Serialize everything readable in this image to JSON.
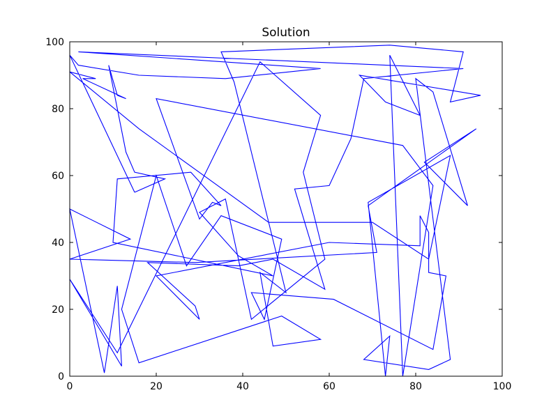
{
  "chart_data": {
    "type": "line",
    "title": "Solution",
    "xlabel": "",
    "ylabel": "",
    "xlim": [
      0,
      100
    ],
    "ylim": [
      0,
      100
    ],
    "xticks": [
      0,
      20,
      40,
      60,
      80,
      100
    ],
    "yticks": [
      0,
      20,
      40,
      60,
      80,
      100
    ],
    "xtick_labels": [
      "0",
      "20",
      "40",
      "60",
      "80",
      "100"
    ],
    "ytick_labels": [
      "0",
      "20",
      "40",
      "60",
      "80",
      "100"
    ],
    "grid": false,
    "legend": "none",
    "series": [
      {
        "color": "#0000ff",
        "points": [
          [
            15,
            55
          ],
          [
            22,
            59
          ],
          [
            15,
            61
          ],
          [
            13,
            67
          ],
          [
            9,
            93
          ],
          [
            11,
            84
          ],
          [
            13,
            83
          ],
          [
            3,
            89
          ],
          [
            6,
            89
          ],
          [
            0,
            91
          ],
          [
            16,
            74
          ],
          [
            46,
            46
          ],
          [
            70,
            46
          ],
          [
            83,
            35
          ],
          [
            88,
            66
          ],
          [
            69,
            52
          ],
          [
            73,
            0
          ],
          [
            74,
            12
          ],
          [
            68,
            5
          ],
          [
            83,
            2
          ],
          [
            88,
            5
          ],
          [
            80,
            89
          ],
          [
            84,
            85
          ],
          [
            92,
            51
          ],
          [
            82,
            64
          ],
          [
            94,
            74
          ],
          [
            69,
            51
          ],
          [
            71,
            37
          ],
          [
            29,
            34
          ],
          [
            0,
            35
          ],
          [
            14,
            41
          ],
          [
            0,
            50
          ],
          [
            8,
            1
          ],
          [
            11,
            27
          ],
          [
            12,
            3
          ],
          [
            0,
            29
          ],
          [
            11,
            7
          ],
          [
            44,
            94
          ],
          [
            58,
            78
          ],
          [
            54,
            61
          ],
          [
            59,
            35
          ],
          [
            42,
            17
          ],
          [
            36,
            53
          ],
          [
            30,
            49
          ],
          [
            39,
            36
          ],
          [
            47,
            30
          ],
          [
            10,
            40
          ],
          [
            11,
            59
          ],
          [
            28,
            61
          ],
          [
            35,
            51
          ],
          [
            33,
            52
          ],
          [
            30,
            47
          ],
          [
            20,
            83
          ],
          [
            77,
            69
          ],
          [
            84,
            57
          ],
          [
            77,
            0
          ],
          [
            74,
            96
          ],
          [
            81,
            78
          ],
          [
            73,
            82
          ],
          [
            67,
            90
          ],
          [
            95,
            84
          ],
          [
            88,
            82
          ],
          [
            91,
            97
          ],
          [
            74,
            99
          ],
          [
            35,
            97
          ],
          [
            38,
            88
          ],
          [
            50,
            25
          ],
          [
            44,
            31
          ],
          [
            47,
            9
          ],
          [
            58,
            11
          ],
          [
            49,
            18
          ],
          [
            16,
            4
          ],
          [
            12,
            20
          ],
          [
            20,
            60
          ],
          [
            27,
            33
          ],
          [
            35,
            48
          ],
          [
            49,
            41
          ],
          [
            45,
            17
          ],
          [
            42,
            25
          ],
          [
            61,
            23
          ],
          [
            84,
            8
          ],
          [
            87,
            30
          ],
          [
            83,
            31
          ],
          [
            83,
            43
          ],
          [
            81,
            48
          ],
          [
            81,
            39
          ],
          [
            60,
            40
          ],
          [
            20,
            30
          ],
          [
            30,
            17
          ],
          [
            29,
            21
          ],
          [
            18,
            34
          ],
          [
            39,
            33
          ],
          [
            47,
            35
          ],
          [
            59,
            26
          ],
          [
            52,
            56
          ],
          [
            60,
            57
          ],
          [
            65,
            71
          ],
          [
            68,
            89
          ],
          [
            91,
            92
          ],
          [
            2,
            97
          ],
          [
            58,
            92
          ],
          [
            36,
            89
          ],
          [
            16,
            90
          ],
          [
            2,
            93
          ],
          [
            0,
            96
          ],
          [
            0,
            96
          ],
          [
            15,
            55
          ]
        ]
      }
    ]
  }
}
